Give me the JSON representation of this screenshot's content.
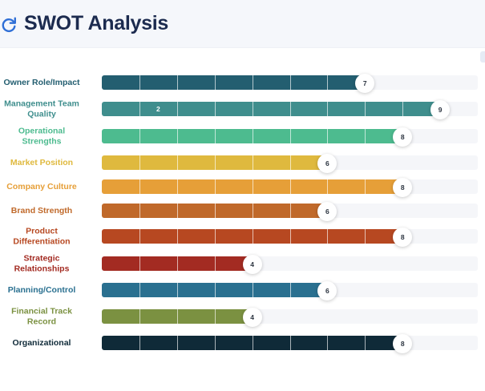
{
  "header": {
    "title": "SWOT Analysis",
    "icon": "refresh-icon"
  },
  "colors": {
    "title": "#1c2b4f",
    "icon": "#2f6fd6"
  },
  "chart_data": {
    "type": "bar",
    "orientation": "horizontal",
    "title": "",
    "xlim": [
      0,
      10
    ],
    "categories": [
      "Owner Role/Impact",
      "Management Team Quality",
      "Operational Strengths",
      "Market Position",
      "Company Culture",
      "Brand Strength",
      "Product Differentiation",
      "Strategic Relationships",
      "Planning/Control",
      "Financial Track Record",
      "Organizational"
    ],
    "values": [
      7,
      9,
      8,
      6,
      8,
      6,
      8,
      4,
      6,
      4,
      8
    ],
    "colors": [
      "#235e70",
      "#3f8e8d",
      "#4dbb8f",
      "#dfb93e",
      "#e69f38",
      "#c0692a",
      "#b74821",
      "#a32b22",
      "#2a7090",
      "#7b9141",
      "#0f2a38"
    ],
    "annotations": [
      {
        "category": "Management Team Quality",
        "text": "2"
      }
    ]
  }
}
